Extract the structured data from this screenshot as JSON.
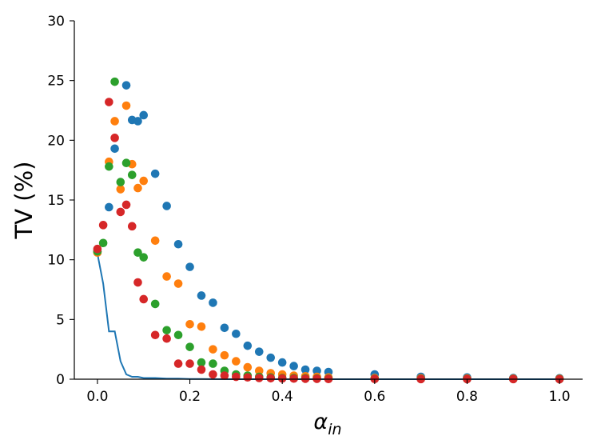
{
  "chart_data": {
    "type": "scatter",
    "title": "",
    "ylabel": "TV (%)",
    "xlabel": {
      "base": "α",
      "subscript": "in"
    },
    "xlim": [
      -0.05,
      1.05
    ],
    "ylim": [
      0,
      30
    ],
    "xticks": [
      "0.0",
      "0.2",
      "0.4",
      "0.6",
      "0.8",
      "1.0"
    ],
    "yticks": [
      "0",
      "5",
      "10",
      "15",
      "20",
      "25",
      "30"
    ],
    "grid": false,
    "legend": false,
    "colors": [
      "#1f77b4",
      "#ff7f0e",
      "#2ca02c",
      "#d62728"
    ],
    "line": {
      "color": "#1f77b4",
      "x": [
        0.0,
        0.0125,
        0.025,
        0.0375,
        0.05,
        0.0625,
        0.075,
        0.0875,
        0.1,
        0.125,
        0.15,
        0.175,
        0.2,
        0.25,
        0.3,
        0.4,
        0.5,
        0.6,
        0.7,
        0.8,
        0.9,
        1.0
      ],
      "y": [
        10.5,
        8.0,
        4.0,
        4.0,
        1.5,
        0.4,
        0.2,
        0.2,
        0.1,
        0.1,
        0.05,
        0.05,
        0.02,
        0.01,
        0.0,
        0.0,
        0.0,
        0.0,
        0.0,
        0.0,
        0.0,
        0.0
      ]
    },
    "series": [
      {
        "color": "#1f77b4",
        "x": [
          0.0,
          0.025,
          0.0375,
          0.0625,
          0.075,
          0.0875,
          0.1,
          0.125,
          0.15,
          0.175,
          0.2,
          0.225,
          0.25,
          0.275,
          0.3,
          0.325,
          0.35,
          0.375,
          0.4,
          0.425,
          0.45,
          0.475,
          0.5,
          0.6,
          0.7,
          0.8,
          0.9,
          1.0
        ],
        "y": [
          10.7,
          14.4,
          19.3,
          24.6,
          21.7,
          21.6,
          22.1,
          17.2,
          14.5,
          11.3,
          9.4,
          7.0,
          6.4,
          4.3,
          3.8,
          2.8,
          2.3,
          1.8,
          1.4,
          1.1,
          0.8,
          0.7,
          0.6,
          0.4,
          0.2,
          0.15,
          0.1,
          0.08
        ]
      },
      {
        "color": "#ff7f0e",
        "x": [
          0.0,
          0.025,
          0.0375,
          0.05,
          0.0625,
          0.075,
          0.0875,
          0.1,
          0.125,
          0.15,
          0.175,
          0.2,
          0.225,
          0.25,
          0.275,
          0.3,
          0.325,
          0.35,
          0.375,
          0.4,
          0.425,
          0.45,
          0.475,
          0.5,
          0.6,
          0.7,
          0.8,
          0.9,
          1.0
        ],
        "y": [
          10.6,
          18.2,
          21.6,
          15.9,
          22.9,
          18.0,
          16.0,
          16.6,
          11.6,
          8.6,
          8.0,
          4.6,
          4.4,
          2.5,
          2.0,
          1.5,
          1.0,
          0.7,
          0.5,
          0.4,
          0.3,
          0.25,
          0.2,
          0.15,
          0.1,
          0.08,
          0.06,
          0.05,
          0.04
        ]
      },
      {
        "color": "#2ca02c",
        "x": [
          0.0,
          0.0125,
          0.025,
          0.0375,
          0.05,
          0.0625,
          0.075,
          0.0875,
          0.1,
          0.125,
          0.15,
          0.175,
          0.2,
          0.225,
          0.25,
          0.275,
          0.3,
          0.325,
          0.35,
          0.375,
          0.4,
          0.425,
          0.45,
          0.475,
          0.5,
          0.6,
          0.7,
          0.8,
          0.9,
          1.0
        ],
        "y": [
          10.7,
          11.4,
          17.8,
          24.9,
          16.5,
          18.1,
          17.1,
          10.6,
          10.2,
          6.3,
          4.1,
          3.7,
          2.7,
          1.4,
          1.3,
          0.7,
          0.4,
          0.3,
          0.2,
          0.15,
          0.1,
          0.1,
          0.08,
          0.06,
          0.05,
          0.04,
          0.03,
          0.02,
          0.02,
          0.01
        ]
      },
      {
        "color": "#d62728",
        "x": [
          0.0,
          0.0125,
          0.025,
          0.0375,
          0.05,
          0.0625,
          0.075,
          0.0875,
          0.1,
          0.125,
          0.15,
          0.175,
          0.2,
          0.225,
          0.25,
          0.275,
          0.3,
          0.325,
          0.35,
          0.375,
          0.4,
          0.425,
          0.45,
          0.475,
          0.5,
          0.6,
          0.7,
          0.8,
          0.9,
          1.0
        ],
        "y": [
          10.9,
          12.9,
          23.2,
          20.2,
          14.0,
          14.6,
          12.8,
          8.1,
          6.7,
          3.7,
          3.4,
          1.3,
          1.3,
          0.8,
          0.4,
          0.3,
          0.2,
          0.15,
          0.1,
          0.08,
          0.06,
          0.05,
          0.04,
          0.03,
          0.02,
          0.02,
          0.01,
          0.01,
          0.01,
          0.0
        ]
      }
    ]
  }
}
